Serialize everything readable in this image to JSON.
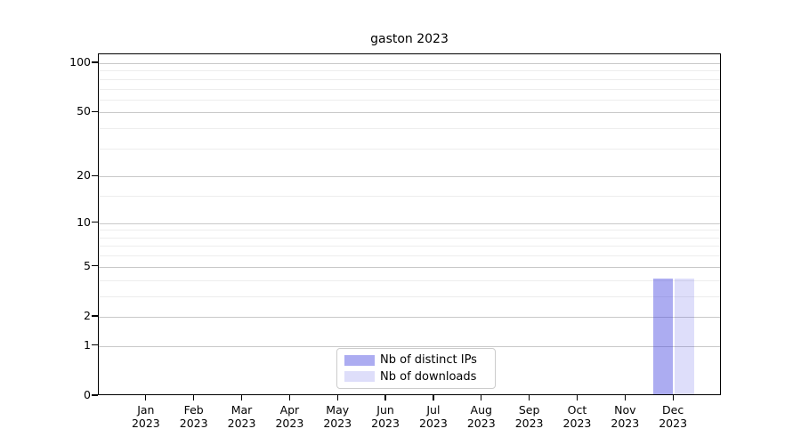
{
  "chart_data": {
    "type": "bar",
    "title": "gaston 2023",
    "categories": [
      "Jan 2023",
      "Feb 2023",
      "Mar 2023",
      "Apr 2023",
      "May 2023",
      "Jun 2023",
      "Jul 2023",
      "Aug 2023",
      "Sep 2023",
      "Oct 2023",
      "Nov 2023",
      "Dec 2023"
    ],
    "series": [
      {
        "name": "Nb of distinct IPs",
        "color": "rgba(70,70,225,0.45)",
        "values": [
          0,
          0,
          0,
          0,
          0,
          0,
          0,
          0,
          0,
          0,
          0,
          4
        ]
      },
      {
        "name": "Nb of downloads",
        "color": "rgba(70,70,225,0.18)",
        "values": [
          0,
          0,
          0,
          0,
          0,
          0,
          0,
          0,
          0,
          0,
          0,
          4
        ]
      }
    ],
    "xlabel": "",
    "ylabel": "",
    "yscale": "log1p",
    "ylim": [
      0,
      113
    ],
    "y_ticks": [
      0,
      1,
      2,
      5,
      10,
      20,
      50,
      100
    ],
    "y_minor_gridlines": [
      3,
      4,
      6,
      7,
      8,
      9,
      15,
      30,
      40,
      60,
      70,
      80,
      90
    ],
    "grid": "horizontal",
    "legend_position": "bottom-center",
    "colors": {
      "grid_major": "#c9c9c9",
      "grid_minor": "#ededed",
      "axis": "#000000",
      "text": "#000000",
      "background": "#ffffff",
      "legend_border": "#cccccc"
    }
  }
}
